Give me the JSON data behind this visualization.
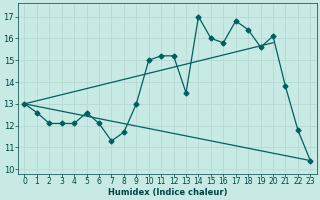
{
  "xlabel": "Humidex (Indice chaleur)",
  "bg_color": "#c8eae5",
  "line_color": "#005f5f",
  "grid_color": "#b8d8d4",
  "font_color": "#004444",
  "xlim": [
    -0.5,
    23.5
  ],
  "ylim": [
    9.8,
    17.6
  ],
  "yticks": [
    10,
    11,
    12,
    13,
    14,
    15,
    16,
    17
  ],
  "xticks": [
    0,
    1,
    2,
    3,
    4,
    5,
    6,
    7,
    8,
    9,
    10,
    11,
    12,
    13,
    14,
    15,
    16,
    17,
    18,
    19,
    20,
    21,
    22,
    23
  ],
  "main_x": [
    0,
    1,
    2,
    3,
    4,
    5,
    6,
    7,
    8,
    9,
    10,
    11,
    12,
    13,
    14,
    15,
    16,
    17,
    18,
    19,
    20,
    21,
    22,
    23
  ],
  "main_y": [
    13.0,
    12.6,
    12.1,
    12.1,
    12.1,
    12.6,
    12.1,
    11.3,
    11.7,
    13.0,
    15.0,
    15.2,
    15.2,
    13.5,
    17.0,
    16.0,
    15.8,
    16.8,
    16.4,
    15.6,
    16.1,
    13.8,
    11.8,
    10.4
  ],
  "trend1_x": [
    0,
    20
  ],
  "trend1_y": [
    13.0,
    15.8
  ],
  "trend2_x": [
    0,
    23
  ],
  "trend2_y": [
    13.0,
    10.4
  ],
  "marker_size": 2.5,
  "line_width": 0.9,
  "xlabel_fontsize": 6.0,
  "tick_fontsize": 5.5,
  "ytick_fontsize": 6.0
}
